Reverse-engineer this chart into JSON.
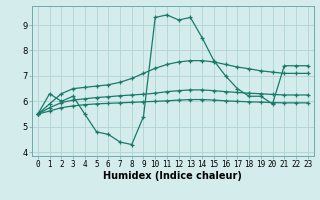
{
  "title": "",
  "xlabel": "Humidex (Indice chaleur)",
  "ylabel": "",
  "bg_color": "#d4ecec",
  "grid_color": "#b0d4d4",
  "line_color": "#1a7a6a",
  "series": [
    {
      "x": [
        0,
        1,
        2,
        3,
        4,
        5,
        6,
        7,
        8,
        9,
        10,
        11,
        12,
        13,
        14,
        15,
        16,
        17,
        18,
        19,
        20,
        21,
        22,
        23
      ],
      "y": [
        5.5,
        6.3,
        6.0,
        6.2,
        5.5,
        4.8,
        4.7,
        4.4,
        4.3,
        5.4,
        9.3,
        9.4,
        9.2,
        9.3,
        8.5,
        7.6,
        7.0,
        6.5,
        6.2,
        6.2,
        5.9,
        7.4,
        7.4,
        7.4
      ]
    },
    {
      "x": [
        0,
        1,
        2,
        3,
        4,
        5,
        6,
        7,
        8,
        9,
        10,
        11,
        12,
        13,
        14,
        15,
        16,
        17,
        18,
        19,
        20,
        21,
        22,
        23
      ],
      "y": [
        5.5,
        5.9,
        6.3,
        6.5,
        6.55,
        6.6,
        6.65,
        6.75,
        6.9,
        7.1,
        7.3,
        7.45,
        7.55,
        7.6,
        7.6,
        7.55,
        7.45,
        7.35,
        7.28,
        7.2,
        7.15,
        7.1,
        7.1,
        7.1
      ]
    },
    {
      "x": [
        0,
        1,
        2,
        3,
        4,
        5,
        6,
        7,
        8,
        9,
        10,
        11,
        12,
        13,
        14,
        15,
        16,
        17,
        18,
        19,
        20,
        21,
        22,
        23
      ],
      "y": [
        5.5,
        5.75,
        5.95,
        6.05,
        6.1,
        6.15,
        6.18,
        6.22,
        6.25,
        6.28,
        6.32,
        6.38,
        6.42,
        6.45,
        6.45,
        6.42,
        6.38,
        6.35,
        6.32,
        6.3,
        6.27,
        6.25,
        6.25,
        6.25
      ]
    },
    {
      "x": [
        0,
        1,
        2,
        3,
        4,
        5,
        6,
        7,
        8,
        9,
        10,
        11,
        12,
        13,
        14,
        15,
        16,
        17,
        18,
        19,
        20,
        21,
        22,
        23
      ],
      "y": [
        5.5,
        5.62,
        5.75,
        5.82,
        5.87,
        5.9,
        5.92,
        5.94,
        5.96,
        5.98,
        6.0,
        6.02,
        6.05,
        6.07,
        6.07,
        6.05,
        6.02,
        6.0,
        5.98,
        5.97,
        5.95,
        5.94,
        5.94,
        5.94
      ]
    }
  ],
  "xlim": [
    -0.5,
    23.5
  ],
  "ylim": [
    3.85,
    9.75
  ],
  "yticks": [
    4,
    5,
    6,
    7,
    8,
    9
  ],
  "xtick_labels": [
    "0",
    "1",
    "2",
    "3",
    "4",
    "5",
    "6",
    "7",
    "8",
    "9",
    "10",
    "11",
    "12",
    "13",
    "14",
    "15",
    "16",
    "17",
    "18",
    "19",
    "20",
    "21",
    "22",
    "23"
  ],
  "marker": "+",
  "markersize": 3.5,
  "linewidth": 0.9,
  "tick_fontsize": 5.5,
  "xlabel_fontsize": 7.0
}
